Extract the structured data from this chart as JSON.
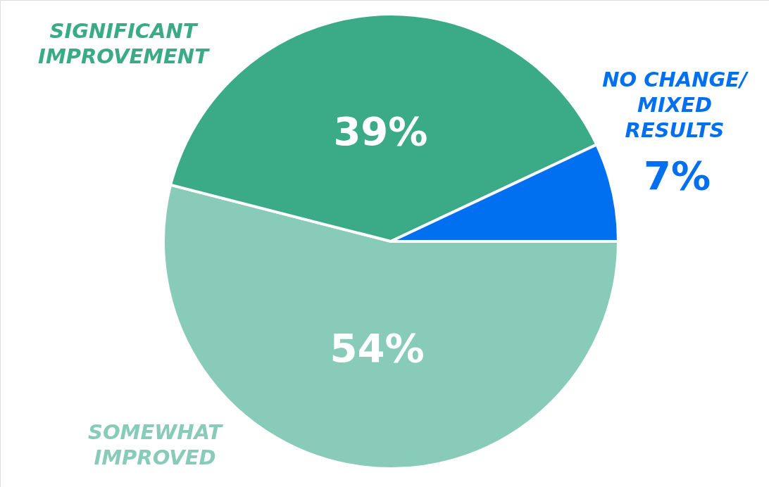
{
  "chart_data": {
    "type": "pie",
    "categories": [
      "SOMEWHAT\nIMPROVED",
      "SIGNIFICANT\nIMPROVEMENT",
      "NO CHANGE/\nMIXED\nRESULTS"
    ],
    "values": [
      54,
      39,
      7
    ],
    "colors": [
      "#88cbb8",
      "#3aab86",
      "#0070f0"
    ],
    "value_labels": [
      "54%",
      "39%",
      "7%"
    ]
  }
}
